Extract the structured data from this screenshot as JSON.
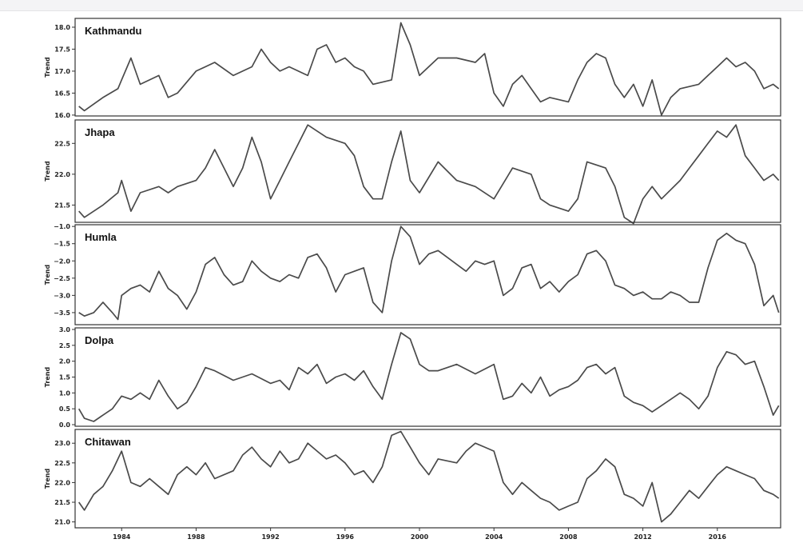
{
  "chart_data": {
    "type": "line",
    "x_axis": {
      "unit": "year",
      "range": [
        1981.5,
        2019.4
      ],
      "ticks": [
        1984,
        1988,
        1992,
        1996,
        2000,
        2004,
        2008,
        2012,
        2016
      ],
      "tick_labels": [
        "1984",
        "1988",
        "1992",
        "1996",
        "2000",
        "2004",
        "2008",
        "2012",
        "2016"
      ]
    },
    "line_color": "#4a4a4a",
    "frame_color": "#333333",
    "panels": [
      {
        "title": "Kathmandu",
        "ylabel": "Trend",
        "ylim": [
          15.98,
          18.2
        ],
        "yticks": [
          16.0,
          16.5,
          17.0,
          17.5,
          18.0
        ],
        "ytick_labels": [
          "16.0",
          "16.5",
          "17.0",
          "17.5",
          "18.0"
        ],
        "series": [
          {
            "x": [
              1981.7,
              1982.0,
              1983.0,
              1983.8,
              1984.0,
              1984.5,
              1985.0,
              1985.5,
              1986.0,
              1986.5,
              1987.0,
              1988.0,
              1989.0,
              1990.0,
              1991.0,
              1991.5,
              1992.0,
              1992.5,
              1993.0,
              1994.0,
              1994.5,
              1995.0,
              1995.5,
              1996.0,
              1996.5,
              1997.0,
              1997.5,
              1998.5,
              1999.0,
              1999.5,
              2000.0,
              2001.0,
              2002.0,
              2003.0,
              2003.5,
              2004.0,
              2004.5,
              2005.0,
              2005.5,
              2006.0,
              2006.5,
              2007.0,
              2008.0,
              2008.5,
              2009.0,
              2009.5,
              2010.0,
              2010.5,
              2011.0,
              2011.5,
              2012.0,
              2012.5,
              2013.0,
              2013.5,
              2014.0,
              2015.0,
              2015.5,
              2016.0,
              2016.5,
              2017.0,
              2017.5,
              2018.0,
              2018.5,
              2019.0,
              2019.3
            ],
            "y": [
              16.2,
              16.1,
              16.4,
              16.6,
              16.8,
              17.3,
              16.7,
              16.8,
              16.9,
              16.4,
              16.5,
              17.0,
              17.2,
              16.9,
              17.1,
              17.5,
              17.2,
              17.0,
              17.1,
              16.9,
              17.5,
              17.6,
              17.2,
              17.3,
              17.1,
              17.0,
              16.7,
              16.8,
              18.1,
              17.6,
              16.9,
              17.3,
              17.3,
              17.2,
              17.4,
              16.5,
              16.2,
              16.7,
              16.9,
              16.6,
              16.3,
              16.4,
              16.3,
              16.8,
              17.2,
              17.4,
              17.3,
              16.7,
              16.4,
              16.7,
              16.2,
              16.8,
              16.0,
              16.4,
              16.6,
              16.7,
              16.9,
              17.1,
              17.3,
              17.1,
              17.2,
              17.0,
              16.6,
              16.7,
              16.6
            ]
          }
        ]
      },
      {
        "title": "Jhapa",
        "ylabel": "Trend",
        "ylim": [
          21.22,
          22.88
        ],
        "yticks": [
          21.5,
          22.0,
          22.5
        ],
        "ytick_labels": [
          "21.5",
          "22.0",
          "22.5"
        ],
        "series": [
          {
            "x": [
              1981.7,
              1982.0,
              1983.0,
              1983.8,
              1984.0,
              1984.5,
              1985.0,
              1986.0,
              1986.5,
              1987.0,
              1988.0,
              1988.5,
              1989.0,
              1989.5,
              1990.0,
              1990.5,
              1991.0,
              1991.5,
              1992.0,
              1992.5,
              1993.0,
              1993.5,
              1994.0,
              1994.5,
              1995.0,
              1996.0,
              1996.5,
              1997.0,
              1997.5,
              1998.0,
              1998.5,
              1999.0,
              1999.5,
              2000.0,
              2001.0,
              2002.0,
              2003.0,
              2004.0,
              2005.0,
              2006.0,
              2006.5,
              2007.0,
              2008.0,
              2008.5,
              2009.0,
              2010.0,
              2010.5,
              2011.0,
              2011.5,
              2012.0,
              2012.5,
              2013.0,
              2014.0,
              2014.5,
              2015.0,
              2015.5,
              2016.0,
              2016.5,
              2017.0,
              2017.5,
              2018.0,
              2018.5,
              2019.0,
              2019.3
            ],
            "y": [
              21.4,
              21.3,
              21.5,
              21.7,
              21.9,
              21.4,
              21.7,
              21.8,
              21.7,
              21.8,
              21.9,
              22.1,
              22.4,
              22.1,
              21.8,
              22.1,
              22.6,
              22.2,
              21.6,
              21.9,
              22.2,
              22.5,
              22.8,
              22.7,
              22.6,
              22.5,
              22.3,
              21.8,
              21.6,
              21.6,
              22.2,
              22.7,
              21.9,
              21.7,
              22.2,
              21.9,
              21.8,
              21.6,
              22.1,
              22.0,
              21.6,
              21.5,
              21.4,
              21.6,
              22.2,
              22.1,
              21.8,
              21.3,
              21.2,
              21.6,
              21.8,
              21.6,
              21.9,
              22.1,
              22.3,
              22.5,
              22.7,
              22.6,
              22.8,
              22.3,
              22.1,
              21.9,
              22.0,
              21.9
            ]
          }
        ]
      },
      {
        "title": "Humla",
        "ylabel": "Trend",
        "ylim": [
          -3.85,
          -0.95
        ],
        "yticks": [
          -3.5,
          -3.0,
          -2.5,
          -2.0,
          -1.5,
          -1.0
        ],
        "ytick_labels": [
          "−3.5",
          "−3.0",
          "−2.5",
          "−2.0",
          "−1.5",
          "−1.0"
        ],
        "series": [
          {
            "x": [
              1981.7,
              1982.0,
              1982.5,
              1983.0,
              1983.5,
              1983.8,
              1984.0,
              1984.5,
              1985.0,
              1985.5,
              1986.0,
              1986.5,
              1987.0,
              1987.5,
              1988.0,
              1988.5,
              1989.0,
              1989.5,
              1990.0,
              1990.5,
              1991.0,
              1991.5,
              1992.0,
              1992.5,
              1993.0,
              1993.5,
              1994.0,
              1994.5,
              1995.0,
              1995.5,
              1996.0,
              1996.5,
              1997.0,
              1997.5,
              1998.0,
              1998.5,
              1999.0,
              1999.5,
              2000.0,
              2000.5,
              2001.0,
              2001.5,
              2002.0,
              2002.5,
              2003.0,
              2003.5,
              2004.0,
              2004.5,
              2005.0,
              2005.5,
              2006.0,
              2006.5,
              2007.0,
              2007.5,
              2008.0,
              2008.5,
              2009.0,
              2009.5,
              2010.0,
              2010.5,
              2011.0,
              2011.5,
              2012.0,
              2012.5,
              2013.0,
              2013.5,
              2014.0,
              2014.5,
              2015.0,
              2015.5,
              2016.0,
              2016.5,
              2017.0,
              2017.5,
              2018.0,
              2018.5,
              2019.0,
              2019.3
            ],
            "y": [
              -3.5,
              -3.6,
              -3.5,
              -3.2,
              -3.5,
              -3.7,
              -3.0,
              -2.8,
              -2.7,
              -2.9,
              -2.3,
              -2.8,
              -3.0,
              -3.4,
              -2.9,
              -2.1,
              -1.9,
              -2.4,
              -2.7,
              -2.6,
              -2.0,
              -2.3,
              -2.5,
              -2.6,
              -2.4,
              -2.5,
              -1.9,
              -1.8,
              -2.2,
              -2.9,
              -2.4,
              -2.3,
              -2.2,
              -3.2,
              -3.5,
              -2.0,
              -1.0,
              -1.3,
              -2.1,
              -1.8,
              -1.7,
              -1.9,
              -2.1,
              -2.3,
              -2.0,
              -2.1,
              -2.0,
              -3.0,
              -2.8,
              -2.2,
              -2.1,
              -2.8,
              -2.6,
              -2.9,
              -2.6,
              -2.4,
              -1.8,
              -1.7,
              -2.0,
              -2.7,
              -2.8,
              -3.0,
              -2.9,
              -3.1,
              -3.1,
              -2.9,
              -3.0,
              -3.2,
              -3.2,
              -2.2,
              -1.4,
              -1.2,
              -1.4,
              -1.5,
              -2.1,
              -3.3,
              -3.0,
              -3.5
            ]
          }
        ]
      },
      {
        "title": "Dolpa",
        "ylabel": "Trend",
        "ylim": [
          -0.05,
          3.05
        ],
        "yticks": [
          0.0,
          0.5,
          1.0,
          1.5,
          2.0,
          2.5,
          3.0
        ],
        "ytick_labels": [
          "0.0",
          "0.5",
          "1.0",
          "1.5",
          "2.0",
          "2.5",
          "3.0"
        ],
        "series": [
          {
            "x": [
              1981.7,
              1982.0,
              1982.5,
              1983.0,
              1983.5,
              1984.0,
              1984.5,
              1985.0,
              1985.5,
              1986.0,
              1986.5,
              1987.0,
              1987.5,
              1988.0,
              1988.5,
              1989.0,
              1990.0,
              1991.0,
              1992.0,
              1992.5,
              1993.0,
              1993.5,
              1994.0,
              1994.5,
              1995.0,
              1995.5,
              1996.0,
              1996.5,
              1997.0,
              1997.5,
              1998.0,
              1998.5,
              1999.0,
              1999.5,
              2000.0,
              2000.5,
              2001.0,
              2002.0,
              2003.0,
              2004.0,
              2004.5,
              2005.0,
              2005.5,
              2006.0,
              2006.5,
              2007.0,
              2007.5,
              2008.0,
              2008.5,
              2009.0,
              2009.5,
              2010.0,
              2010.5,
              2011.0,
              2011.5,
              2012.0,
              2012.5,
              2013.0,
              2013.5,
              2014.0,
              2014.5,
              2015.0,
              2015.5,
              2016.0,
              2016.5,
              2017.0,
              2017.5,
              2018.0,
              2018.5,
              2019.0,
              2019.3
            ],
            "y": [
              0.5,
              0.2,
              0.1,
              0.3,
              0.5,
              0.9,
              0.8,
              1.0,
              0.8,
              1.4,
              0.9,
              0.5,
              0.7,
              1.2,
              1.8,
              1.7,
              1.4,
              1.6,
              1.3,
              1.4,
              1.1,
              1.8,
              1.6,
              1.9,
              1.3,
              1.5,
              1.6,
              1.4,
              1.7,
              1.2,
              0.8,
              1.9,
              2.9,
              2.7,
              1.9,
              1.7,
              1.7,
              1.9,
              1.6,
              1.9,
              0.8,
              0.9,
              1.3,
              1.0,
              1.5,
              0.9,
              1.1,
              1.2,
              1.4,
              1.8,
              1.9,
              1.6,
              1.8,
              0.9,
              0.7,
              0.6,
              0.4,
              0.6,
              0.8,
              1.0,
              0.8,
              0.5,
              0.9,
              1.8,
              2.3,
              2.2,
              1.9,
              2.0,
              1.2,
              0.3,
              0.6
            ]
          }
        ]
      },
      {
        "title": "Chitawan",
        "ylabel": "Trend",
        "ylim": [
          20.85,
          23.35
        ],
        "yticks": [
          21.0,
          21.5,
          22.0,
          22.5,
          23.0
        ],
        "ytick_labels": [
          "21.0",
          "21.5",
          "22.0",
          "22.5",
          "23.0"
        ],
        "series": [
          {
            "x": [
              1981.7,
              1982.0,
              1982.5,
              1983.0,
              1983.5,
              1984.0,
              1984.5,
              1985.0,
              1985.5,
              1986.0,
              1986.5,
              1987.0,
              1987.5,
              1988.0,
              1988.5,
              1989.0,
              1990.0,
              1990.5,
              1991.0,
              1991.5,
              1992.0,
              1992.5,
              1993.0,
              1993.5,
              1994.0,
              1994.5,
              1995.0,
              1995.5,
              1996.0,
              1996.5,
              1997.0,
              1997.5,
              1998.0,
              1998.5,
              1999.0,
              1999.5,
              2000.0,
              2000.5,
              2001.0,
              2002.0,
              2002.5,
              2003.0,
              2003.5,
              2004.0,
              2004.5,
              2005.0,
              2005.5,
              2006.0,
              2006.5,
              2007.0,
              2007.5,
              2008.0,
              2008.5,
              2009.0,
              2009.5,
              2010.0,
              2010.5,
              2011.0,
              2011.5,
              2012.0,
              2012.5,
              2013.0,
              2013.5,
              2014.0,
              2014.5,
              2015.0,
              2015.5,
              2016.0,
              2016.5,
              2017.0,
              2017.5,
              2018.0,
              2018.5,
              2019.0,
              2019.3
            ],
            "y": [
              21.5,
              21.3,
              21.7,
              21.9,
              22.3,
              22.8,
              22.0,
              21.9,
              22.1,
              21.9,
              21.7,
              22.2,
              22.4,
              22.2,
              22.5,
              22.1,
              22.3,
              22.7,
              22.9,
              22.6,
              22.4,
              22.8,
              22.5,
              22.6,
              23.0,
              22.8,
              22.6,
              22.7,
              22.5,
              22.2,
              22.3,
              22.0,
              22.4,
              23.2,
              23.3,
              22.9,
              22.5,
              22.2,
              22.6,
              22.5,
              22.8,
              23.0,
              22.9,
              22.8,
              22.0,
              21.7,
              22.0,
              21.8,
              21.6,
              21.5,
              21.3,
              21.4,
              21.5,
              22.1,
              22.3,
              22.6,
              22.4,
              21.7,
              21.6,
              21.4,
              22.0,
              21.0,
              21.2,
              21.5,
              21.8,
              21.6,
              21.9,
              22.2,
              22.4,
              22.3,
              22.2,
              22.1,
              21.8,
              21.7,
              21.6
            ]
          }
        ]
      }
    ]
  }
}
